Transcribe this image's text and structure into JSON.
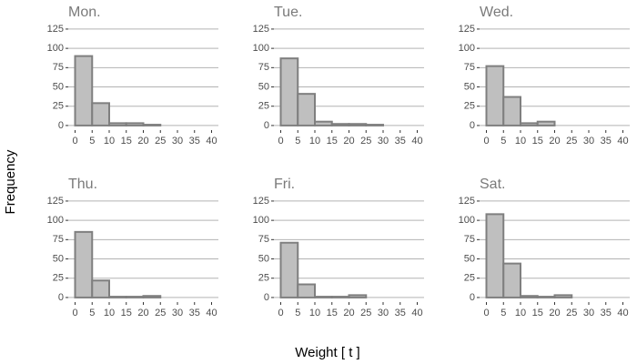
{
  "ylabel": "Frequency",
  "xlabel": "Weight [ t ]",
  "chart_data": [
    {
      "type": "histogram",
      "title": "Mon.",
      "bins": [
        0,
        5,
        10,
        15,
        20,
        25,
        30,
        35,
        40
      ],
      "values": [
        90,
        29,
        3,
        3,
        1,
        0,
        0,
        0
      ],
      "color": "#bfbfbf",
      "xlim": [
        -2,
        42
      ],
      "ylim": [
        -6,
        132
      ],
      "xticks": [
        0,
        5,
        10,
        15,
        20,
        25,
        30,
        35,
        40
      ],
      "yticks": [
        0,
        25,
        50,
        75,
        100,
        125
      ],
      "grid": true
    },
    {
      "type": "histogram",
      "title": "Tue.",
      "bins": [
        0,
        5,
        10,
        15,
        20,
        25,
        30,
        35,
        40
      ],
      "values": [
        87,
        41,
        5,
        2,
        2,
        1,
        0,
        0
      ],
      "color": "#bfbfbf",
      "xlim": [
        -2,
        42
      ],
      "ylim": [
        -6,
        132
      ],
      "xticks": [
        0,
        5,
        10,
        15,
        20,
        25,
        30,
        35,
        40
      ],
      "yticks": [
        0,
        25,
        50,
        75,
        100,
        125
      ],
      "grid": true
    },
    {
      "type": "histogram",
      "title": "Wed.",
      "bins": [
        0,
        5,
        10,
        15,
        20,
        25,
        30,
        35,
        40
      ],
      "values": [
        77,
        37,
        3,
        5,
        0,
        0,
        0,
        0
      ],
      "color": "#bfbfbf",
      "xlim": [
        -2,
        42
      ],
      "ylim": [
        -6,
        132
      ],
      "xticks": [
        0,
        5,
        10,
        15,
        20,
        25,
        30,
        35,
        40
      ],
      "yticks": [
        0,
        25,
        50,
        75,
        100,
        125
      ],
      "grid": true
    },
    {
      "type": "histogram",
      "title": "Thu.",
      "bins": [
        0,
        5,
        10,
        15,
        20,
        25,
        30,
        35,
        40
      ],
      "values": [
        85,
        22,
        1,
        1,
        2,
        0,
        0,
        0
      ],
      "color": "#bfbfbf",
      "xlim": [
        -2,
        42
      ],
      "ylim": [
        -6,
        132
      ],
      "xticks": [
        0,
        5,
        10,
        15,
        20,
        25,
        30,
        35,
        40
      ],
      "yticks": [
        0,
        25,
        50,
        75,
        100,
        125
      ],
      "grid": true
    },
    {
      "type": "histogram",
      "title": "Fri.",
      "bins": [
        0,
        5,
        10,
        15,
        20,
        25,
        30,
        35,
        40
      ],
      "values": [
        71,
        17,
        1,
        1,
        3,
        0,
        0,
        0
      ],
      "color": "#bfbfbf",
      "xlim": [
        -2,
        42
      ],
      "ylim": [
        -6,
        132
      ],
      "xticks": [
        0,
        5,
        10,
        15,
        20,
        25,
        30,
        35,
        40
      ],
      "yticks": [
        0,
        25,
        50,
        75,
        100,
        125
      ],
      "grid": true
    },
    {
      "type": "histogram",
      "title": "Sat.",
      "bins": [
        0,
        5,
        10,
        15,
        20,
        25,
        30,
        35,
        40
      ],
      "values": [
        108,
        44,
        2,
        1,
        3,
        0,
        0,
        0
      ],
      "color": "#bfbfbf",
      "xlim": [
        -2,
        42
      ],
      "ylim": [
        -6,
        132
      ],
      "xticks": [
        0,
        5,
        10,
        15,
        20,
        25,
        30,
        35,
        40
      ],
      "yticks": [
        0,
        25,
        50,
        75,
        100,
        125
      ],
      "grid": true
    }
  ]
}
